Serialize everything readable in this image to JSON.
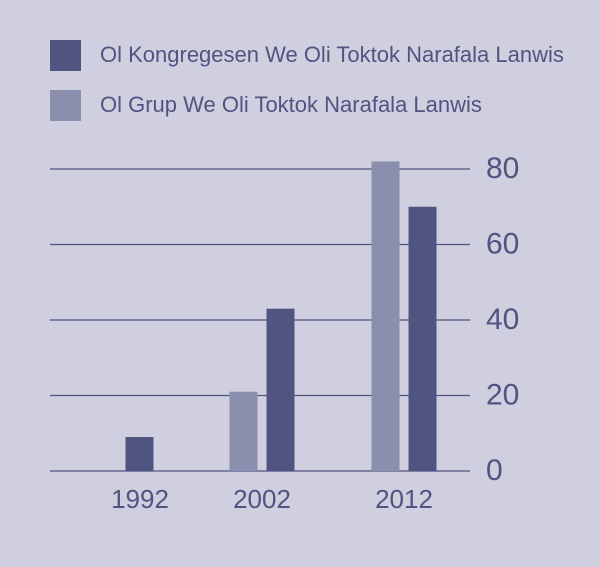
{
  "chart_data": {
    "type": "bar",
    "categories": [
      "1992",
      "2002",
      "2012"
    ],
    "series": [
      {
        "name": "Ol Kongregesen We Oli Toktok Narafala Lanwis",
        "color": "#4f5580",
        "values": [
          9,
          43,
          70
        ]
      },
      {
        "name": "Ol Grup We Oli Toktok Narafala Lanwis",
        "color": "#8a8fad",
        "values": [
          null,
          21,
          82
        ]
      }
    ],
    "ylim": [
      0,
      80
    ],
    "yticks": [
      0,
      20,
      40,
      60,
      80
    ],
    "grid": true,
    "legend": "top-left"
  }
}
